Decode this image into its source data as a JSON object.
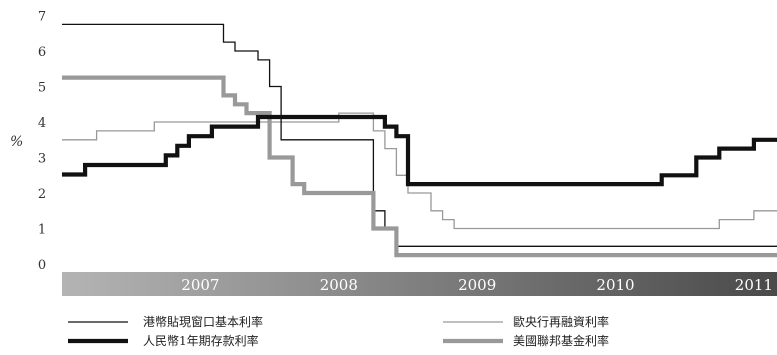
{
  "chart_data": {
    "type": "line",
    "ylabel": "%",
    "ylim": [
      0,
      7
    ],
    "yticks": [
      "0",
      "1",
      "2",
      "3",
      "4",
      "5",
      "6",
      "7"
    ],
    "xlim": [
      "2006-07",
      "2011-09"
    ],
    "year_labels": [
      "2007",
      "2008",
      "2009",
      "2010",
      "2011"
    ],
    "grid": false,
    "legend_position": "bottom",
    "series": [
      {
        "name": "港幣貼現窗口基本利率",
        "color": "#111111",
        "style": "thin",
        "points": [
          [
            "2006-07",
            6.75
          ],
          [
            "2007-09",
            6.25
          ],
          [
            "2007-10",
            6.0
          ],
          [
            "2007-12",
            5.75
          ],
          [
            "2008-01",
            5.0
          ],
          [
            "2008-02",
            3.5
          ],
          [
            "2008-03",
            3.5
          ],
          [
            "2008-04",
            3.5
          ],
          [
            "2008-05",
            3.5
          ],
          [
            "2008-10",
            1.5
          ],
          [
            "2008-11",
            1.0
          ],
          [
            "2008-12",
            0.5
          ],
          [
            "2011-09",
            0.5
          ]
        ]
      },
      {
        "name": "歐央行再融資利率",
        "color": "#999999",
        "style": "thin",
        "points": [
          [
            "2006-07",
            3.5
          ],
          [
            "2006-08",
            3.5
          ],
          [
            "2006-10",
            3.75
          ],
          [
            "2006-12",
            3.75
          ],
          [
            "2007-03",
            4.0
          ],
          [
            "2007-06",
            4.0
          ],
          [
            "2008-07",
            4.25
          ],
          [
            "2008-10",
            3.75
          ],
          [
            "2008-11",
            3.25
          ],
          [
            "2008-12",
            2.5
          ],
          [
            "2009-01",
            2.0
          ],
          [
            "2009-03",
            1.5
          ],
          [
            "2009-04",
            1.25
          ],
          [
            "2009-05",
            1.0
          ],
          [
            "2011-04",
            1.25
          ],
          [
            "2011-07",
            1.5
          ],
          [
            "2011-09",
            1.5
          ]
        ]
      },
      {
        "name": "人民幣1年期存款利率",
        "color": "#111111",
        "style": "thick",
        "points": [
          [
            "2006-07",
            2.52
          ],
          [
            "2006-08",
            2.52
          ],
          [
            "2006-09",
            2.79
          ],
          [
            "2007-03",
            2.79
          ],
          [
            "2007-04",
            3.06
          ],
          [
            "2007-05",
            3.33
          ],
          [
            "2007-06",
            3.6
          ],
          [
            "2007-08",
            3.87
          ],
          [
            "2007-10",
            3.87
          ],
          [
            "2007-12",
            4.14
          ],
          [
            "2008-10",
            4.14
          ],
          [
            "2008-11",
            3.87
          ],
          [
            "2008-12",
            3.6
          ],
          [
            "2009-01",
            2.25
          ],
          [
            "2010-10",
            2.25
          ],
          [
            "2010-11",
            2.5
          ],
          [
            "2011-02",
            3.0
          ],
          [
            "2011-04",
            3.25
          ],
          [
            "2011-07",
            3.5
          ],
          [
            "2011-09",
            3.5
          ]
        ]
      },
      {
        "name": "美國聯邦基金利率",
        "color": "#999999",
        "style": "thick",
        "points": [
          [
            "2006-07",
            5.25
          ],
          [
            "2007-09",
            4.75
          ],
          [
            "2007-10",
            4.5
          ],
          [
            "2007-11",
            4.25
          ],
          [
            "2008-01",
            3.0
          ],
          [
            "2008-02",
            3.0
          ],
          [
            "2008-03",
            2.25
          ],
          [
            "2008-04",
            2.0
          ],
          [
            "2008-05",
            2.0
          ],
          [
            "2008-10",
            1.0
          ],
          [
            "2008-11",
            1.0
          ],
          [
            "2008-12",
            0.25
          ],
          [
            "2011-09",
            0.25
          ]
        ]
      }
    ]
  }
}
